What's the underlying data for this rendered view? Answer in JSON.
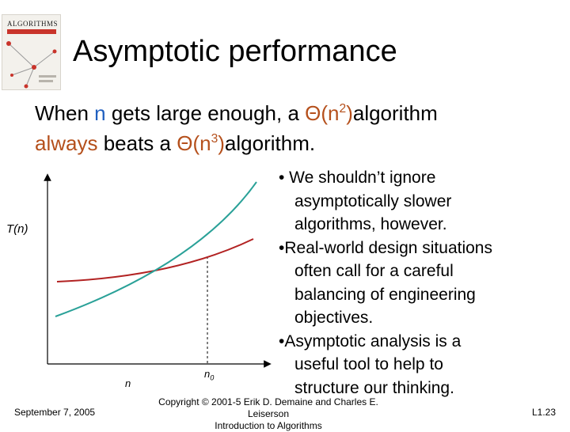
{
  "slide": {
    "title": "Asymptotic performance",
    "line1_a": "When ",
    "line1_n": "n",
    "line1_b": " gets large enough, a ",
    "line1_theta": "Θ(n",
    "line1_exp": "2",
    "line1_close": ")",
    "line1_c": "algorithm",
    "line2_always": "always",
    "line2_a": " beats a ",
    "line2_theta": "Θ(n",
    "line2_exp": "3",
    "line2_close": ")",
    "line2_b": "algorithm."
  },
  "book_cover": {
    "title": "ALGORITHMS",
    "icon": "book-cover-image"
  },
  "graph": {
    "y_label": "T(n)",
    "x_label": "n",
    "crossover_label": "n",
    "crossover_sub": "0",
    "colors": {
      "axes": "#000000",
      "cubic_curve": "#2aa198",
      "quadratic_curve": "#b22222",
      "dashed_line": "#000000"
    }
  },
  "bullets": [
    "• We shouldn’t ignore asymptotically slower algorithms, however.",
    "•Real-world design situations often call for a careful balancing of engineering objectives.",
    "•Asymptotic analysis is a useful tool to help to structure our thinking."
  ],
  "footer": {
    "date": "September 7, 2005",
    "copyright_line1": "Copyright © 2001-5 Erik D. Demaine and Charles E. Leiserson",
    "copyright_line2": "Introduction to Algorithms",
    "page": "L1.23"
  }
}
